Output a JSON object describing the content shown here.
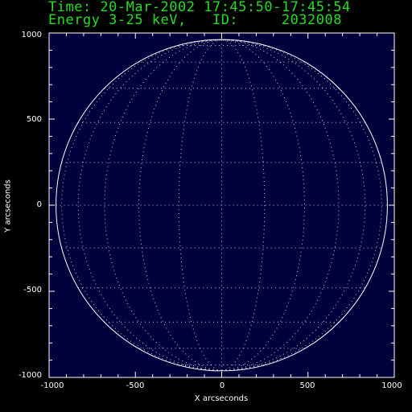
{
  "header": {
    "time_line": "Time: 20-Mar-2002 17:45:50-17:45:54",
    "energy_line": "Energy 3-25 keV,   ID:     2032008",
    "text_color": "#22dd22"
  },
  "plot": {
    "xlabel": "X arcseconds",
    "ylabel": "Y arcseconds",
    "xlim": [
      -1000,
      1000
    ],
    "ylim": [
      -1000,
      1000
    ],
    "x_ticks": [
      "-1000",
      "-500",
      "0",
      "500",
      "1000"
    ],
    "y_ticks": [
      "1000",
      "500",
      "0",
      "-500",
      "-1000"
    ],
    "limb_color": "#ffffff",
    "colormap": "red-temperature"
  }
}
